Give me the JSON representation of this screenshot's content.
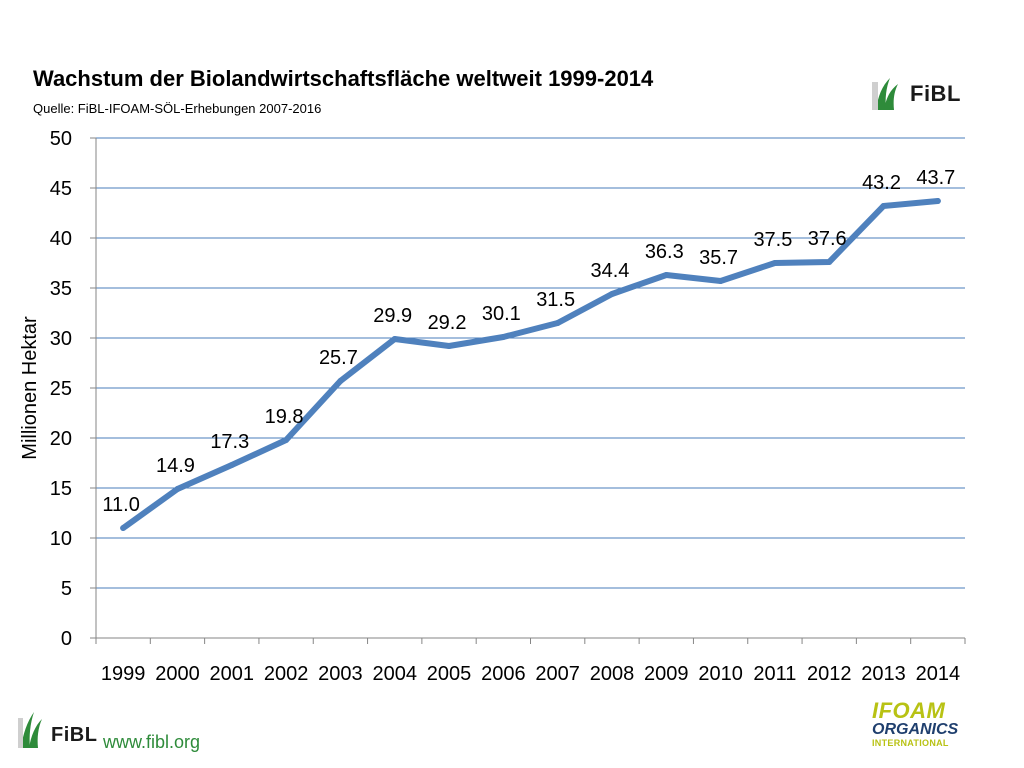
{
  "header": {
    "title": "Wachstum der Biolandwirtschaftsfläche weltweit 1999-2014",
    "subtitle": "Quelle: FiBL-IFOAM-SÖL-Erhebungen 2007-2016"
  },
  "logos": {
    "fibl_word": "FiBL",
    "footer_url": "www.fibl.org",
    "ifoam_line1": "IFOAM",
    "ifoam_line2": "ORGANICS",
    "ifoam_line3": "INTERNATIONAL"
  },
  "colors": {
    "line": "#4f81bd",
    "grid": "#4a7ebb",
    "fibl_green": "#2e8b3a",
    "ifoam_yellow": "#b8c214",
    "ifoam_blue": "#1f3f6e"
  },
  "chart_data": {
    "type": "line",
    "title": "",
    "xlabel": "",
    "ylabel": "Millionen Hektar",
    "ylim": [
      0,
      50
    ],
    "yticks": [
      0,
      5,
      10,
      15,
      20,
      25,
      30,
      35,
      40,
      45,
      50
    ],
    "grid": true,
    "categories": [
      "1999",
      "2000",
      "2001",
      "2002",
      "2003",
      "2004",
      "2005",
      "2006",
      "2007",
      "2008",
      "2009",
      "2010",
      "2011",
      "2012",
      "2013",
      "2014"
    ],
    "series": [
      {
        "values": [
          11.0,
          14.9,
          17.3,
          19.8,
          25.7,
          29.9,
          29.2,
          30.1,
          31.5,
          34.4,
          36.3,
          35.7,
          37.5,
          37.6,
          43.2,
          43.7
        ],
        "labels": [
          "11.0",
          "14.9",
          "17.3",
          "19.8",
          "25.7",
          "29.9",
          "29.2",
          "30.1",
          "31.5",
          "34.4",
          "36.3",
          "35.7",
          "37.5",
          "37.6",
          "43.2",
          "43.7"
        ]
      }
    ]
  }
}
